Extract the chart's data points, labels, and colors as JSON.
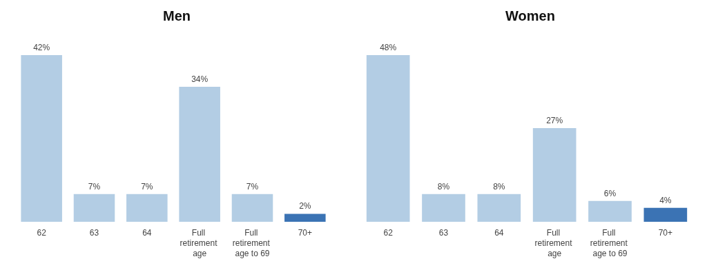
{
  "chart_data": [
    {
      "type": "bar",
      "title": "Men",
      "categories": [
        "62",
        "63",
        "64",
        "Full retirement age",
        "Full retirement age to 69",
        "70+"
      ],
      "values": [
        42,
        7,
        7,
        34,
        7,
        2
      ],
      "colors": [
        "#b3cde4",
        "#b3cde4",
        "#b3cde4",
        "#b3cde4",
        "#b3cde4",
        "#3b73b4"
      ],
      "value_labels": [
        "42%",
        "7%",
        "7%",
        "34%",
        "7%",
        "2%"
      ]
    },
    {
      "type": "bar",
      "title": "Women",
      "categories": [
        "62",
        "63",
        "64",
        "Full retirement age",
        "Full retirement age to 69",
        "70+"
      ],
      "values": [
        48,
        8,
        8,
        27,
        6,
        4
      ],
      "colors": [
        "#b3cde4",
        "#b3cde4",
        "#b3cde4",
        "#b3cde4",
        "#b3cde4",
        "#3b73b4"
      ],
      "value_labels": [
        "48%",
        "8%",
        "8%",
        "27%",
        "6%",
        "4%"
      ]
    }
  ]
}
